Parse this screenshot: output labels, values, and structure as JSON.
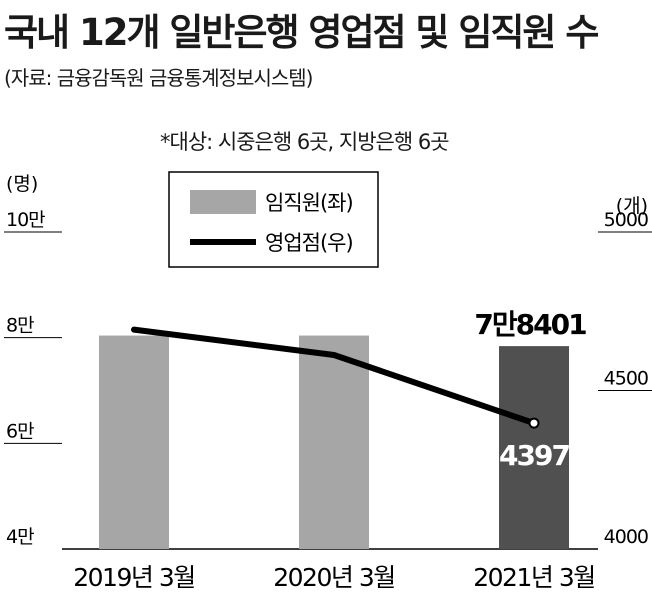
{
  "title": "국내 12개 일반은행 영업점 및 임직원 수",
  "source": "(자료: 금융감독원 금융통계정보시스템)",
  "note": "*대상: 시중은행 6곳, 지방은행 6곳",
  "colors": {
    "bar": "#a6a6a6",
    "bar_highlight": "#505050",
    "line": "#000000"
  },
  "chart_data": {
    "type": "bar+line",
    "categories": [
      "2019년 3월",
      "2020년 3월",
      "2021년 3월"
    ],
    "left_axis": {
      "unit": "(명)",
      "range": [
        40000,
        100000
      ],
      "ticks": [
        {
          "value": 40000,
          "label": "4만"
        },
        {
          "value": 60000,
          "label": "6만"
        },
        {
          "value": 80000,
          "label": "8만"
        },
        {
          "value": 100000,
          "label": "10만"
        }
      ]
    },
    "right_axis": {
      "unit": "(개)",
      "range": [
        4000,
        5000
      ],
      "ticks": [
        {
          "value": 4000,
          "label": "4000"
        },
        {
          "value": 4500,
          "label": "4500"
        },
        {
          "value": 5000,
          "label": "5000"
        }
      ]
    },
    "series": [
      {
        "name": "임직원(좌)",
        "type": "bar",
        "axis": "left",
        "values": [
          80400,
          80400,
          78401
        ],
        "data_labels": [
          "",
          "",
          "7만8401"
        ]
      },
      {
        "name": "영업점(우)",
        "type": "line",
        "axis": "right",
        "values": [
          4692,
          4612,
          4397
        ],
        "data_labels": [
          "",
          "",
          "4397"
        ]
      }
    ],
    "legend": "top-left"
  }
}
